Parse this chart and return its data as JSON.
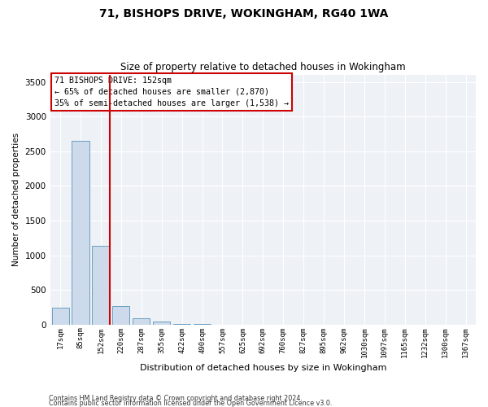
{
  "title1": "71, BISHOPS DRIVE, WOKINGHAM, RG40 1WA",
  "title2": "Size of property relative to detached houses in Wokingham",
  "xlabel": "Distribution of detached houses by size in Wokingham",
  "ylabel": "Number of detached properties",
  "footnote1": "Contains HM Land Registry data © Crown copyright and database right 2024.",
  "footnote2": "Contains public sector information licensed under the Open Government Licence v3.0.",
  "bar_labels": [
    "17sqm",
    "85sqm",
    "152sqm",
    "220sqm",
    "287sqm",
    "355sqm",
    "422sqm",
    "490sqm",
    "557sqm",
    "625sqm",
    "692sqm",
    "760sqm",
    "827sqm",
    "895sqm",
    "962sqm",
    "1030sqm",
    "1097sqm",
    "1165sqm",
    "1232sqm",
    "1300sqm",
    "1367sqm"
  ],
  "bar_values": [
    240,
    2650,
    1130,
    270,
    90,
    50,
    8,
    4,
    2,
    1,
    1,
    1,
    0,
    0,
    0,
    0,
    0,
    0,
    0,
    0,
    0
  ],
  "bar_color": "#ccdaeb",
  "bar_edge_color": "#6a9fc0",
  "ylim": [
    0,
    3600
  ],
  "yticks": [
    0,
    500,
    1000,
    1500,
    2000,
    2500,
    3000,
    3500
  ],
  "red_line_index": 2,
  "annotation_line1": "71 BISHOPS DRIVE: 152sqm",
  "annotation_line2": "← 65% of detached houses are smaller (2,870)",
  "annotation_line3": "35% of semi-detached houses are larger (1,538) →",
  "bg_color": "#eef2f7",
  "grid_color": "#ffffff"
}
